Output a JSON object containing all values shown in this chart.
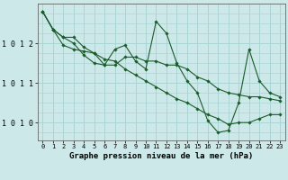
{
  "bg_color": "#cce8e8",
  "grid_color": "#aad4d4",
  "line_color": "#1a5c2a",
  "marker_color": "#1a5c2a",
  "title": "Graphe pression niveau de la mer (hPa)",
  "xlim": [
    -0.5,
    23.5
  ],
  "ylim": [
    1009.55,
    1013.0
  ],
  "yticks": [
    1010,
    1011,
    1012
  ],
  "ytick_labels": [
    "1 0 1 0",
    "1 0 1 1",
    "1 0 1 2"
  ],
  "xticks": [
    0,
    1,
    2,
    3,
    4,
    5,
    6,
    7,
    8,
    9,
    10,
    11,
    12,
    13,
    14,
    15,
    16,
    17,
    18,
    19,
    20,
    21,
    22,
    23
  ],
  "series": [
    [
      1012.8,
      1012.35,
      1012.15,
      1012.15,
      1011.9,
      1011.75,
      1011.6,
      1011.55,
      1011.35,
      1011.2,
      1011.05,
      1010.9,
      1010.75,
      1010.6,
      1010.5,
      1010.35,
      1010.2,
      1010.1,
      1009.95,
      1010.0,
      1010.0,
      1010.1,
      1010.2,
      1010.2
    ],
    [
      1012.8,
      1012.35,
      1012.15,
      1012.0,
      1011.7,
      1011.5,
      1011.45,
      1011.85,
      1011.95,
      1011.55,
      1011.35,
      1012.55,
      1012.25,
      1011.5,
      1011.05,
      1010.75,
      1010.05,
      1009.75,
      1009.8,
      1010.5,
      1011.85,
      1011.05,
      1010.75,
      1010.65
    ],
    [
      1012.8,
      1012.35,
      1011.95,
      1011.85,
      1011.8,
      1011.75,
      1011.45,
      1011.45,
      1011.65,
      1011.65,
      1011.55,
      1011.55,
      1011.45,
      1011.45,
      1011.35,
      1011.15,
      1011.05,
      1010.85,
      1010.75,
      1010.7,
      1010.65,
      1010.65,
      1010.6,
      1010.55
    ]
  ]
}
